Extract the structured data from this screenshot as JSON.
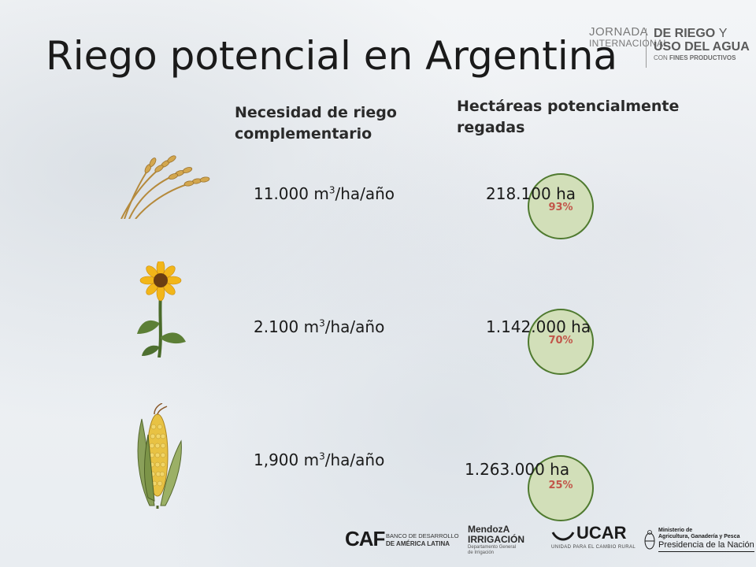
{
  "slide": {
    "title": "Riego potencial en Argentina"
  },
  "event_logo": {
    "line1": "JORNADA",
    "line2": "INTERNACIONAL",
    "line3": "DE RIEGO",
    "line3b": "Y",
    "line4": "USO DEL AGUA",
    "line5a": "CON",
    "line5b": "FINES PRODUCTIVOS"
  },
  "columns": {
    "need_header": "Necesidad de riego complementario",
    "area_header": "Hectáreas potencialmente regadas"
  },
  "rows": [
    {
      "crop_icon": "wheat-icon",
      "need_value": "11.000 m",
      "need_exp": "3",
      "need_unit": "/ha/año",
      "area": "218.100 ha",
      "percent": "93%"
    },
    {
      "crop_icon": "sunflower-icon",
      "need_value": "2.100 m",
      "need_exp": "3",
      "need_unit": "/ha/año",
      "area": "1.142.000 ha",
      "percent": "70%"
    },
    {
      "crop_icon": "corn-icon",
      "need_value": "1,900 m",
      "need_exp": "3",
      "need_unit": "/ha/año",
      "area": "1.263.000 ha",
      "percent": "25%"
    }
  ],
  "footer": {
    "caf_mark": "CAF",
    "caf_line1": "BANCO DE DESARROLLO",
    "caf_line2": "DE AMÉRICA LATINA",
    "mendoza_line1": "MendozA",
    "mendoza_line2": "IRRIGACIÓN",
    "mendoza_sub1": "Departamento General",
    "mendoza_sub2": "de Irrigación",
    "ucar_mark": "UCAR",
    "ucar_sub": "UNIDAD PARA EL CAMBIO RURAL",
    "min_line1": "Ministerio de",
    "min_line2": "Agricultura, Ganadería y Pesca",
    "min_line3": "Presidencia de la Nación"
  },
  "colors": {
    "circle_fill": "#d2dfb9",
    "circle_stroke": "#4f7a2f",
    "percent_text": "#c2564a"
  }
}
